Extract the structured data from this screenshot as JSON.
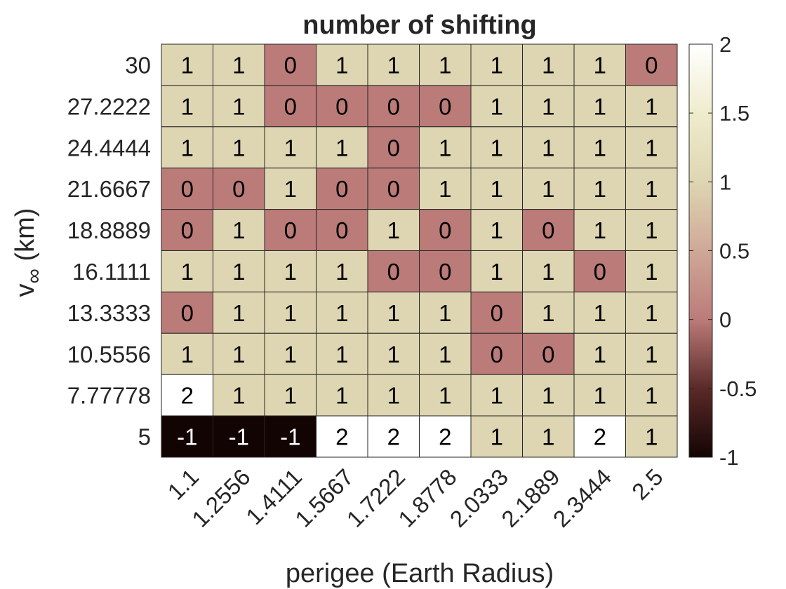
{
  "chart_data": {
    "type": "heatmap",
    "title": "number of shifting",
    "xlabel": "perigee (Earth Radius)",
    "ylabel_main": "v",
    "ylabel_sub": "∞",
    "ylabel_unit": " (km)",
    "x_categories": [
      "1.1",
      "1.2556",
      "1.4111",
      "1.5667",
      "1.7222",
      "1.8778",
      "2.0333",
      "2.1889",
      "2.3444",
      "2.5"
    ],
    "y_categories": [
      "30",
      "27.2222",
      "24.4444",
      "21.6667",
      "18.8889",
      "16.1111",
      "13.3333",
      "10.5556",
      "7.77778",
      "5"
    ],
    "values": [
      [
        1,
        1,
        0,
        1,
        1,
        1,
        1,
        1,
        1,
        0
      ],
      [
        1,
        1,
        0,
        0,
        0,
        0,
        1,
        1,
        1,
        1
      ],
      [
        1,
        1,
        1,
        1,
        0,
        1,
        1,
        1,
        1,
        1
      ],
      [
        0,
        0,
        1,
        0,
        0,
        1,
        1,
        1,
        1,
        1
      ],
      [
        0,
        1,
        0,
        0,
        1,
        0,
        1,
        0,
        1,
        1
      ],
      [
        1,
        1,
        1,
        1,
        0,
        0,
        1,
        1,
        0,
        1
      ],
      [
        0,
        1,
        1,
        1,
        1,
        1,
        0,
        1,
        1,
        1
      ],
      [
        1,
        1,
        1,
        1,
        1,
        1,
        0,
        0,
        1,
        1
      ],
      [
        2,
        1,
        1,
        1,
        1,
        1,
        1,
        1,
        1,
        1
      ],
      [
        -1,
        -1,
        -1,
        2,
        2,
        2,
        1,
        1,
        2,
        1
      ]
    ],
    "colorbar": {
      "range": [
        -1,
        2
      ],
      "ticks": [
        "-1",
        "-0.5",
        "0",
        "0.5",
        "1",
        "1.5",
        "2"
      ],
      "tick_values": [
        -1,
        -0.5,
        0,
        0.5,
        1,
        1.5,
        2
      ]
    },
    "colors": {
      "-1": "#130404",
      "0": "#bb7b79",
      "1": "#ded6b2",
      "2": "#ffffff",
      "dark_text": "#262626",
      "light_text": "#ffffff"
    }
  }
}
